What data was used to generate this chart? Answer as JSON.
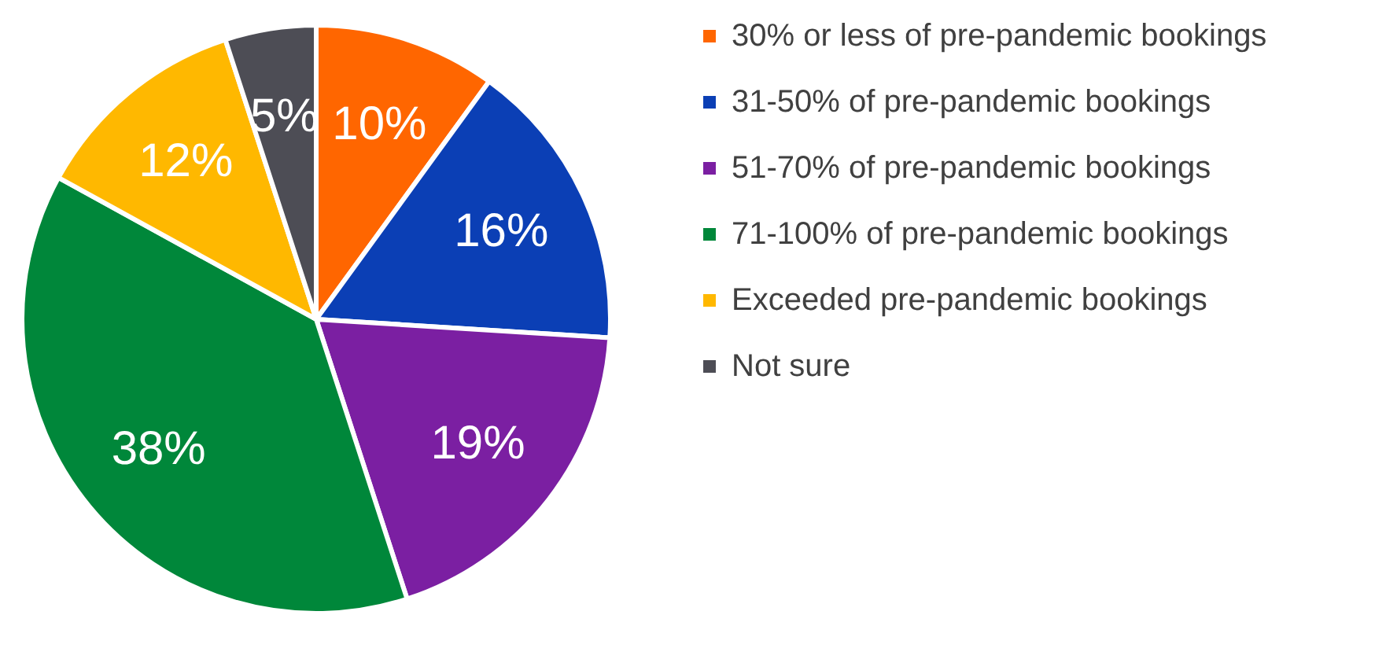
{
  "chart_data": {
    "type": "pie",
    "categories": [
      "30% or less of pre-pandemic bookings",
      "31-50% of pre-pandemic bookings",
      "51-70% of pre-pandemic bookings",
      "71-100% of pre-pandemic bookings",
      "Exceeded pre-pandemic bookings",
      "Not sure"
    ],
    "values": [
      10,
      16,
      19,
      38,
      12,
      5
    ],
    "colors": [
      "#ff6600",
      "#0b3fb5",
      "#7b1fa2",
      "#00873a",
      "#ffb800",
      "#4d4d55"
    ],
    "value_labels": [
      "10%",
      "16%",
      "19%",
      "38%",
      "12%",
      "5%"
    ],
    "legend": "right"
  }
}
